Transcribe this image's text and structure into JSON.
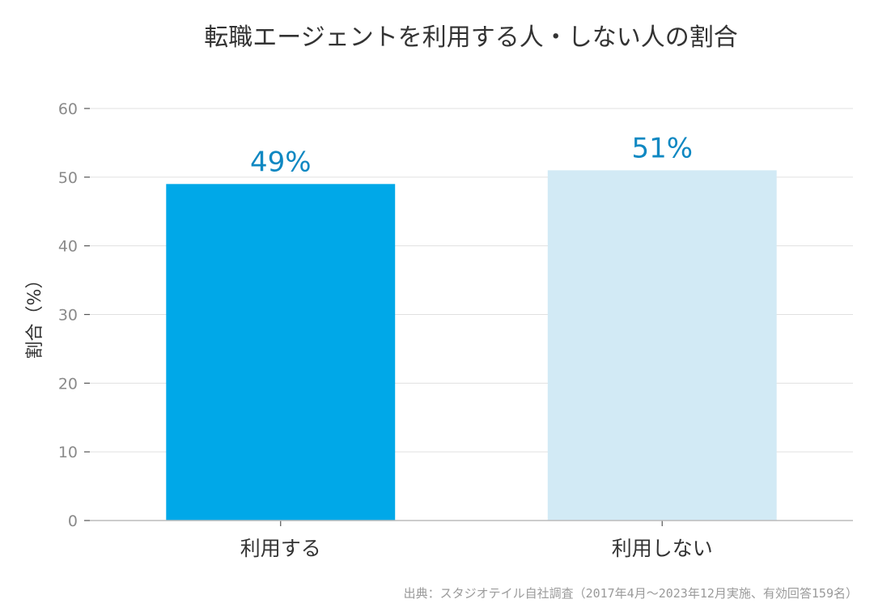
{
  "chart_data": {
    "type": "bar",
    "title": "転職エージェントを利用する人・しない人の割合",
    "ylabel": "割合（%）",
    "xlabel": "",
    "categories": [
      "利用する",
      "利用しない"
    ],
    "values": [
      49,
      51
    ],
    "data_labels": [
      "49%",
      "51%"
    ],
    "bar_colors": [
      "#00a8e8",
      "#d2eaf5"
    ],
    "ylim": [
      0,
      60
    ],
    "yticks": [
      0,
      10,
      20,
      30,
      40,
      50,
      60
    ],
    "ytick_labels": [
      "0",
      "10",
      "20",
      "30",
      "40",
      "50",
      "60"
    ],
    "grid": true,
    "legend": "none",
    "source": "出典：スタジオテイル自社調査（2017年4月〜2023年12月実施、有効回答159名）"
  },
  "colors": {
    "grid": "#e0e0e0",
    "axis": "#bbbbbb",
    "data_label": "#0f88c2"
  }
}
